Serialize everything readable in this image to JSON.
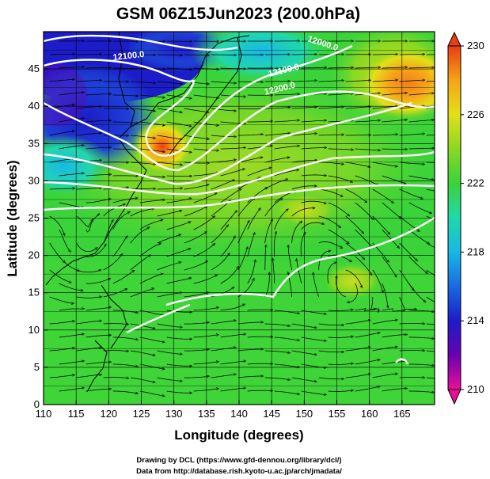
{
  "title": "GSM 06Z15Jun2023 (200.0hPa)",
  "map": {
    "xlabel": "Longitude (degrees)",
    "ylabel": "Latitude  (degrees)",
    "x_ticks": [
      "110",
      "115",
      "120",
      "125",
      "130",
      "135",
      "140",
      "145",
      "150",
      "155",
      "160",
      "165"
    ],
    "y_ticks": [
      "0",
      "5",
      "10",
      "15",
      "20",
      "25",
      "30",
      "35",
      "40",
      "45"
    ],
    "lon_range": [
      110,
      170
    ],
    "lat_range": [
      0,
      50
    ],
    "grid": true,
    "contour_labels": [
      "12100.0",
      "12000.0",
      "12100.0",
      "12200.0"
    ],
    "variables": {
      "shading": "temperature (K)",
      "contours": "geopotential height (m)",
      "streamlines": "wind"
    }
  },
  "colorbar": {
    "ticks": [
      "230",
      "226",
      "222",
      "218",
      "214",
      "210"
    ],
    "range": [
      210,
      230
    ],
    "colors": [
      "#e8109a",
      "#6a00b0",
      "#1c1cc8",
      "#1a6ae0",
      "#18b8e6",
      "#21d8a8",
      "#3ad33a",
      "#8ad822",
      "#e2e018",
      "#f6a418",
      "#ea3d12"
    ]
  },
  "credits": {
    "line1": "Drawing by DCL (https://www.gfd-dennou.org/library/dcl/)",
    "line2": "Data from http://database.rish.kyoto-u.ac.jp/arch/jmadata/"
  }
}
